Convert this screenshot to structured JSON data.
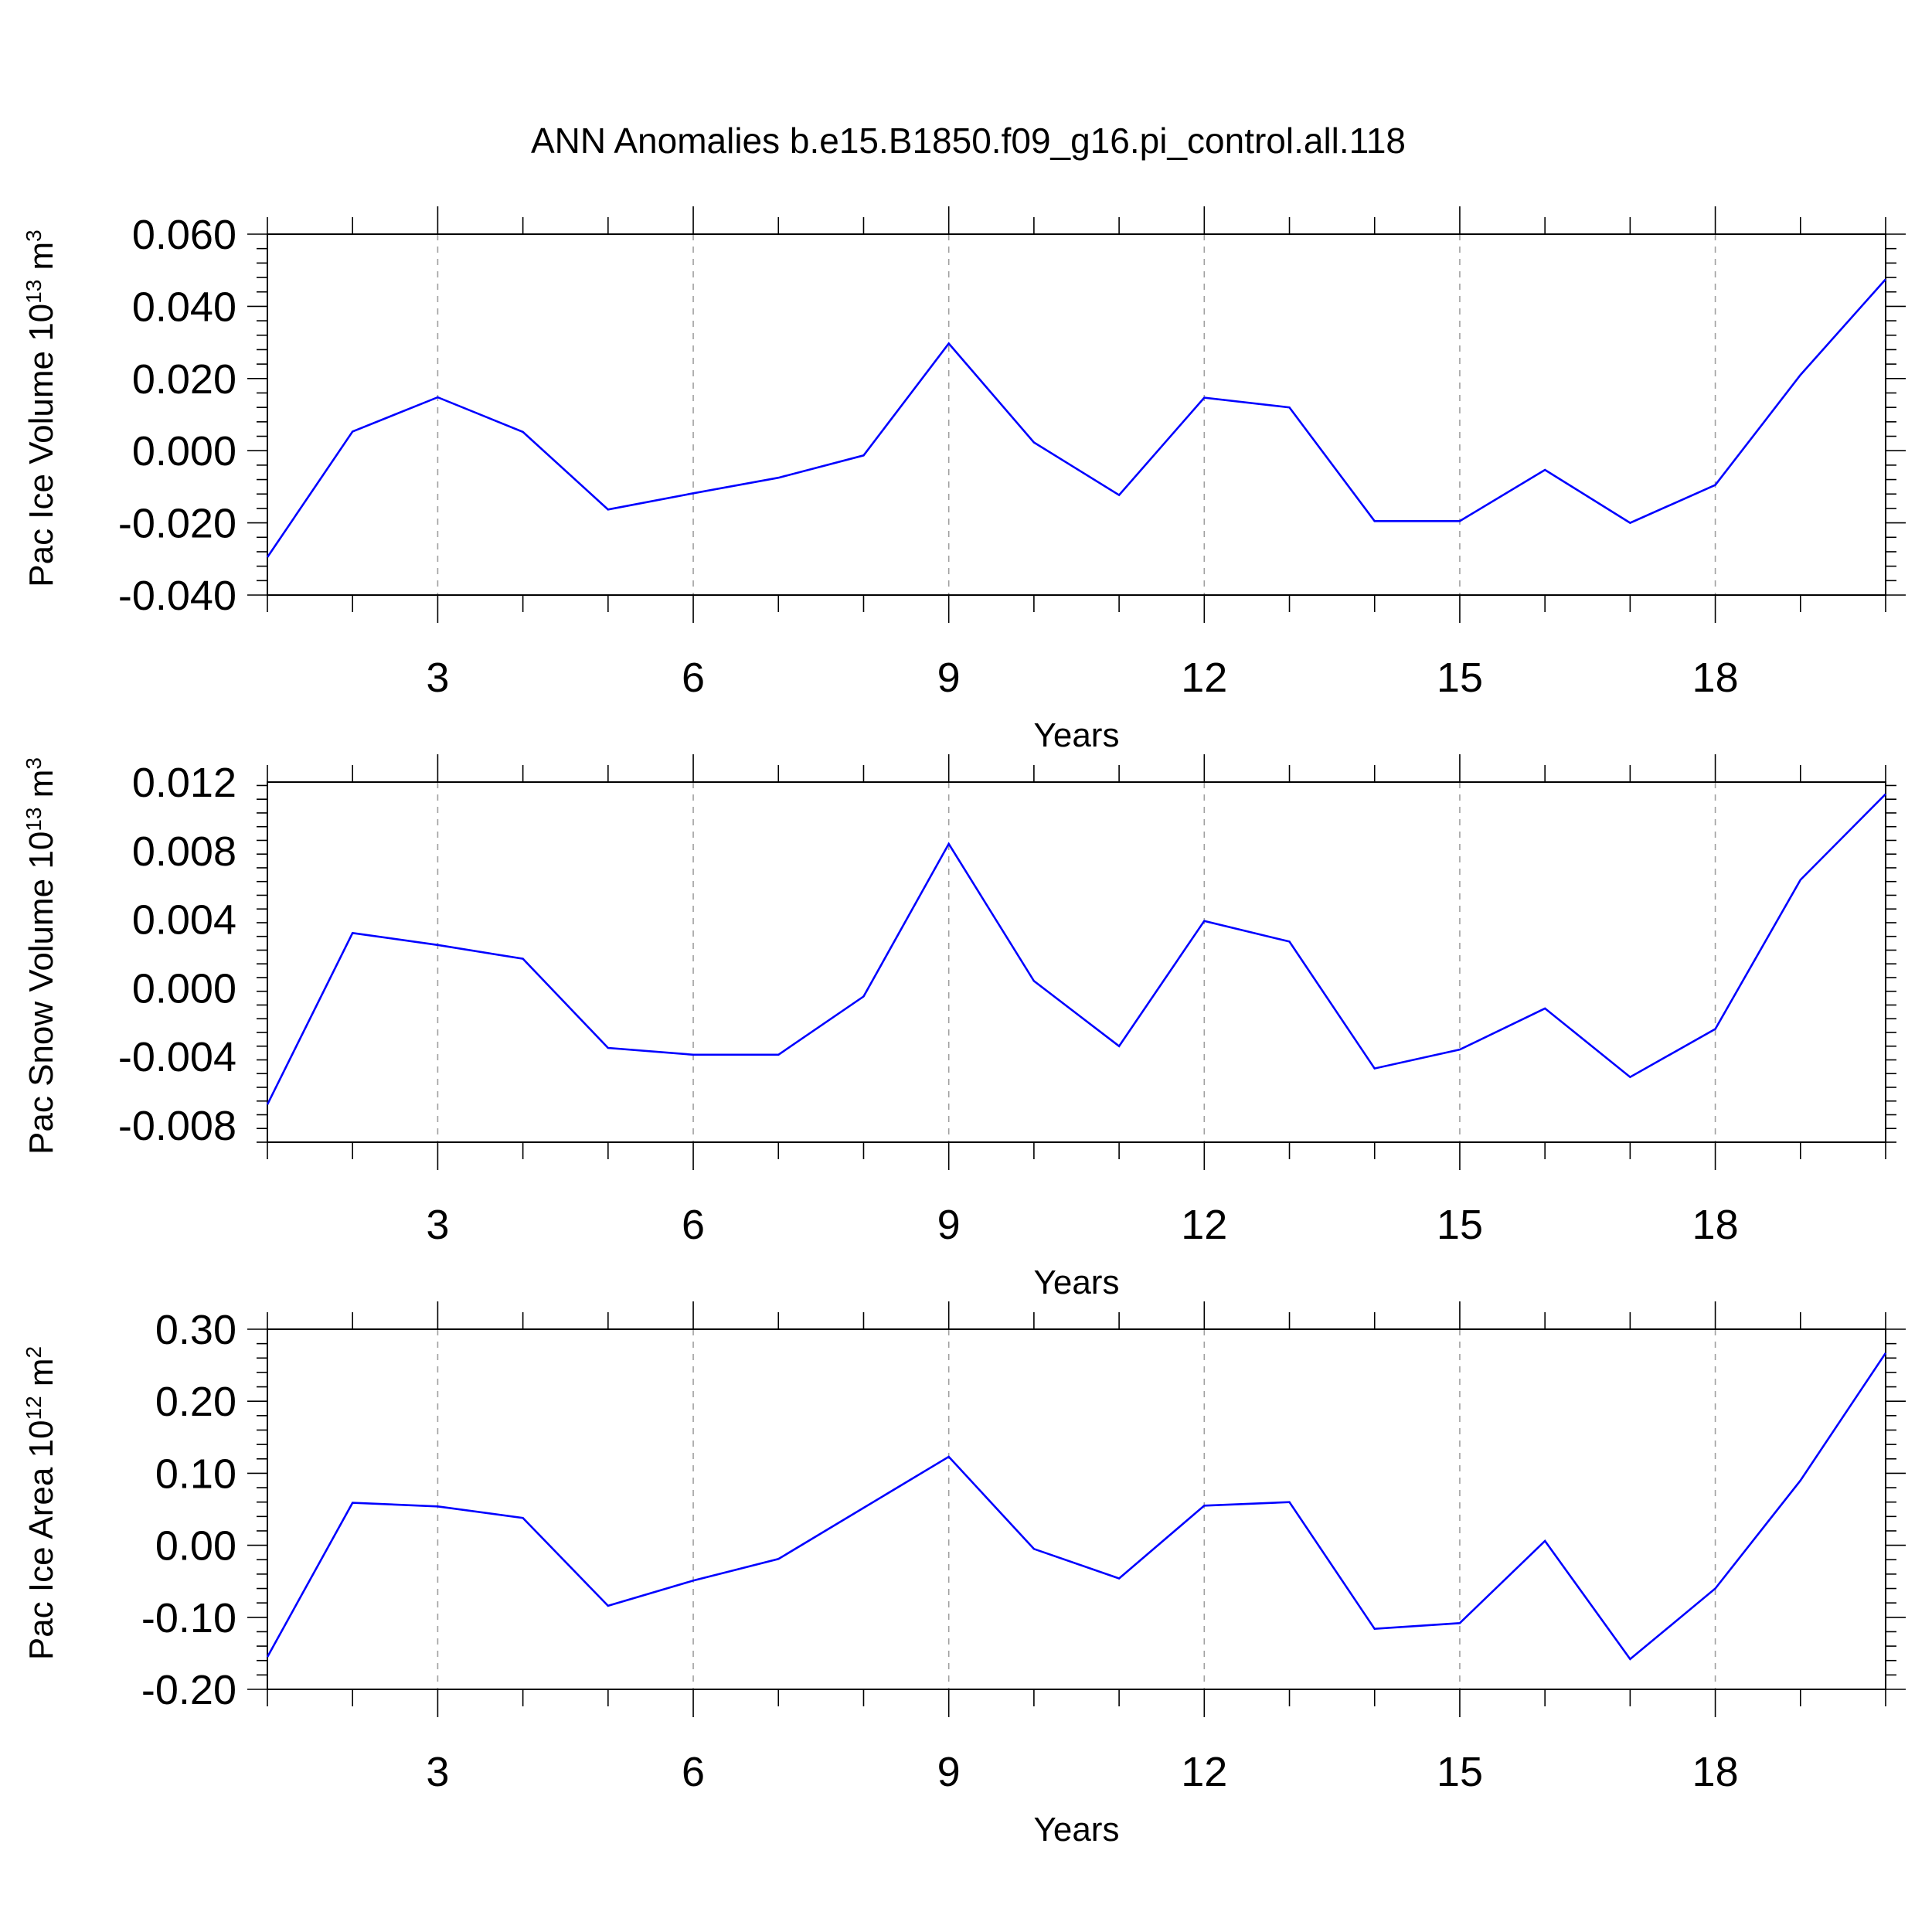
{
  "title": "ANN Anomalies b.e15.B1850.f09_g16.pi_control.all.118",
  "colors": {
    "line": "#0000ff",
    "grid": "#a0a0a0",
    "axes": "#000000"
  },
  "chart_data": [
    {
      "type": "line",
      "title": "",
      "xlabel": "Years",
      "ylabel": "Pac Ice Volume 10",
      "ylabel_exp": "13",
      "ylabel_unit": " m",
      "ylabel_unit_exp": "3",
      "xlim": [
        1,
        20
      ],
      "ylim": [
        -0.04,
        0.06
      ],
      "xticks": [
        3,
        6,
        9,
        12,
        15,
        18
      ],
      "xtick_labels": [
        "3",
        "6",
        "9",
        "12",
        "15",
        "18"
      ],
      "yticks": [
        -0.04,
        -0.02,
        0.0,
        0.02,
        0.04,
        0.06
      ],
      "ytick_labels": [
        "-0.040",
        "-0.020",
        "0.000",
        "0.020",
        "0.040",
        "0.060"
      ],
      "grid": "x dashed",
      "x": [
        1,
        2,
        3,
        4,
        5,
        6,
        7,
        8,
        9,
        10,
        11,
        12,
        13,
        14,
        15,
        16,
        17,
        18,
        19,
        20
      ],
      "series": [
        {
          "values": [
            -0.0295,
            0.0053,
            0.0148,
            0.0052,
            -0.0163,
            -0.0118,
            -0.0075,
            -0.0013,
            0.0297,
            0.0023,
            -0.0123,
            0.0147,
            0.012,
            -0.0195,
            -0.0195,
            -0.0053,
            -0.02,
            -0.0095,
            0.021,
            0.0475
          ]
        }
      ]
    },
    {
      "type": "line",
      "title": "",
      "xlabel": "Years",
      "ylabel": "Pac Snow Volume 10",
      "ylabel_exp": "13",
      "ylabel_unit": " m",
      "ylabel_unit_exp": "3",
      "xlim": [
        1,
        20
      ],
      "ylim": [
        -0.009,
        0.012
      ],
      "xticks": [
        3,
        6,
        9,
        12,
        15,
        18
      ],
      "xtick_labels": [
        "3",
        "6",
        "9",
        "12",
        "15",
        "18"
      ],
      "yticks": [
        -0.008,
        -0.004,
        0.0,
        0.004,
        0.008,
        0.012
      ],
      "ytick_labels": [
        "-0.008",
        "-0.004",
        "0.000",
        "0.004",
        "0.008",
        "0.012"
      ],
      "grid": "x dashed",
      "x": [
        1,
        2,
        3,
        4,
        5,
        6,
        7,
        8,
        9,
        10,
        11,
        12,
        13,
        14,
        15,
        16,
        17,
        18,
        19,
        20
      ],
      "series": [
        {
          "values": [
            -0.0068,
            0.0032,
            0.0025,
            0.0017,
            -0.0035,
            -0.0039,
            -0.0039,
            -0.0005,
            0.0084,
            0.0004,
            -0.0034,
            0.0039,
            0.0027,
            -0.0047,
            -0.0036,
            -0.0012,
            -0.0052,
            -0.0024,
            0.0063,
            0.0113
          ]
        }
      ]
    },
    {
      "type": "line",
      "title": "",
      "xlabel": "Years",
      "ylabel": "Pac Ice Area 10",
      "ylabel_exp": "12",
      "ylabel_unit": " m",
      "ylabel_unit_exp": "2",
      "xlim": [
        1,
        20
      ],
      "ylim": [
        -0.2,
        0.3
      ],
      "xticks": [
        3,
        6,
        9,
        12,
        15,
        18
      ],
      "xtick_labels": [
        "3",
        "6",
        "9",
        "12",
        "15",
        "18"
      ],
      "yticks": [
        -0.2,
        -0.1,
        0.0,
        0.1,
        0.2,
        0.3
      ],
      "ytick_labels": [
        "-0.20",
        "-0.10",
        "0.00",
        "0.10",
        "0.20",
        "0.30"
      ],
      "grid": "x dashed",
      "x": [
        1,
        2,
        3,
        4,
        5,
        6,
        7,
        8,
        9,
        10,
        11,
        12,
        13,
        14,
        15,
        16,
        17,
        18,
        19,
        20
      ],
      "series": [
        {
          "values": [
            -0.155,
            0.059,
            0.054,
            0.038,
            -0.084,
            -0.049,
            -0.019,
            0.052,
            0.123,
            -0.005,
            -0.046,
            0.055,
            0.06,
            -0.116,
            -0.108,
            0.006,
            -0.158,
            -0.06,
            0.09,
            0.267
          ]
        }
      ]
    }
  ]
}
